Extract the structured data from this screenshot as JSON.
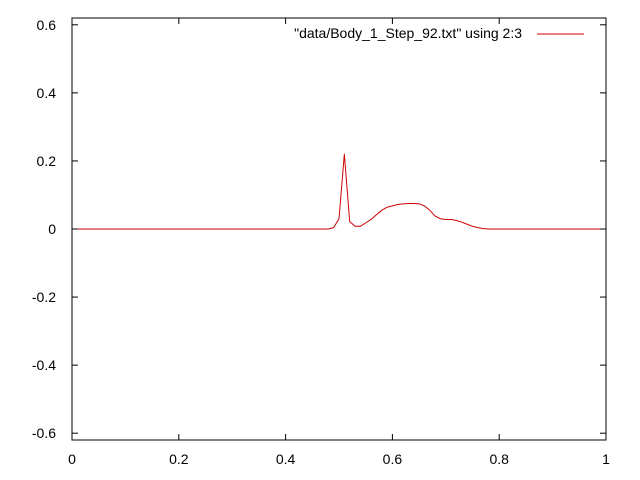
{
  "chart_data": {
    "type": "line",
    "title": "",
    "xlabel": "",
    "ylabel": "",
    "xlim": [
      0,
      1
    ],
    "ylim": [
      -0.62,
      0.62
    ],
    "x_ticks": [
      0,
      0.2,
      0.4,
      0.6,
      0.8,
      1
    ],
    "x_tick_labels": [
      "0",
      "0.2",
      "0.4",
      "0.6",
      "0.8",
      "1"
    ],
    "y_ticks": [
      -0.6,
      -0.4,
      -0.2,
      0,
      0.2,
      0.4,
      0.6
    ],
    "y_tick_labels": [
      "-0.6",
      "-0.4",
      "-0.2",
      "0",
      "0.2",
      "0.4",
      "0.6"
    ],
    "grid": false,
    "legend_position": "top-right",
    "series": [
      {
        "name": "\"data/Body_1_Step_92.txt\" using 2:3",
        "color": "#cc0000",
        "points": [
          [
            0,
            0
          ],
          [
            0.48,
            0
          ],
          [
            0.49,
            0.004
          ],
          [
            0.5,
            0.03
          ],
          [
            0.51,
            0.22
          ],
          [
            0.52,
            0.022
          ],
          [
            0.53,
            0.008
          ],
          [
            0.54,
            0.008
          ],
          [
            0.55,
            0.018
          ],
          [
            0.56,
            0.028
          ],
          [
            0.57,
            0.042
          ],
          [
            0.58,
            0.055
          ],
          [
            0.59,
            0.064
          ],
          [
            0.6,
            0.068
          ],
          [
            0.61,
            0.072
          ],
          [
            0.62,
            0.074
          ],
          [
            0.63,
            0.075
          ],
          [
            0.64,
            0.075
          ],
          [
            0.65,
            0.074
          ],
          [
            0.66,
            0.068
          ],
          [
            0.67,
            0.055
          ],
          [
            0.68,
            0.038
          ],
          [
            0.69,
            0.03
          ],
          [
            0.7,
            0.028
          ],
          [
            0.71,
            0.028
          ],
          [
            0.72,
            0.025
          ],
          [
            0.73,
            0.02
          ],
          [
            0.74,
            0.014
          ],
          [
            0.75,
            0.008
          ],
          [
            0.76,
            0.004
          ],
          [
            0.77,
            0.001
          ],
          [
            0.78,
            0
          ],
          [
            1,
            0
          ]
        ]
      }
    ]
  }
}
